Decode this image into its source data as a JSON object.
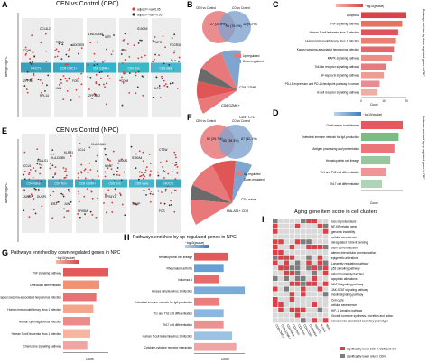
{
  "panels": {
    "A": {
      "label": "A",
      "title": "CEN vs Control (CPC)",
      "ylabel": "average log2FC",
      "legend": [
        "adjust P−val<0.05",
        "adjust P−val>=0.05"
      ],
      "clusters": [
        "NK/CTL",
        "CD8 CMC1+",
        "CD8 GZMB+",
        "CD4 Tem",
        "CD8 naive"
      ],
      "cluster_colors": [
        "#3a9fb8",
        "#36a6c9",
        "#2fb4cf",
        "#3bb8c5",
        "#49b6cf"
      ],
      "genes_up": [
        "CCL5",
        "TRAC",
        "LINC02446",
        "HBB",
        "TMPO",
        "CCL4L2",
        "ADGRE5",
        "IL7R",
        "S100A9",
        "FCGR3A"
      ],
      "genes_down": [
        "ZFP36",
        "JUN",
        "ZFP36L2",
        "CD69",
        "KLF6",
        "RPL14",
        "FOS"
      ]
    },
    "B": {
      "label": "B",
      "venn": {
        "left_title": "CEN vs Control",
        "right_title": "CO vs Control",
        "left": "27\n(20.8%)",
        "center": "91\n(70.0%)",
        "right": "12\n(9.2%)"
      },
      "legend": [
        "Up-regulated",
        "Down-regulated"
      ],
      "annotations": [
        "CD8 GZMB",
        "CD8 GZMK+",
        "CD4+ CTL"
      ]
    },
    "C": {
      "label": "C",
      "scale_label": "−log10(pvalue)",
      "xlabel": "Count",
      "side_label": "Pathways enriched by down-regulated genes in CPC",
      "ticks": [
        "0",
        "10",
        "20"
      ],
      "pathways": [
        "Apoptosis",
        "TNF signaling pathway",
        "Human T-cell leukemia virus 1 infection",
        "Human immunodeficiency virus 1 infection",
        "Kaposi sarcoma-associated herpesvirus infection",
        "MAPK signaling pathway",
        "Toll-like receptor signaling pathway",
        "NF-kappa B signaling pathway",
        "PD-L1 expression and PD-1 checkpoint pathway in cancer",
        "B cell receptor signaling pathway"
      ],
      "values": [
        22,
        20,
        18,
        17,
        16,
        15,
        12,
        11,
        9,
        8
      ]
    },
    "D": {
      "label": "D",
      "scale_label": "−log10(pvalue)",
      "xlabel": "Count",
      "side_label": "Pathways enriched by up-regulated genes in CPC",
      "pathways": [
        "Graft-versus-host disease",
        "Intestinal immune network for IgA production",
        "Antigen processing and presentation",
        "Hematopoietic cell lineage",
        "Th1 and Th2 cell differentiation",
        "Th17 cell differentiation"
      ],
      "values": [
        10,
        9,
        8,
        7,
        6,
        5
      ]
    },
    "E": {
      "label": "E",
      "title": "CEN vs Control (NPC)",
      "ylabel": "average log2FC",
      "clusters": [
        "CD4 Naive",
        "CD4 Tem",
        "CD8 GZMK+",
        "CD8 Tem",
        "CD8 naive",
        "NK/CTL"
      ],
      "cluster_colors": [
        "#3a9fb8",
        "#4aa6c2",
        "#33b0c8",
        "#3bb5c6",
        "#45b3cc",
        "#3aa9c0"
      ],
      "genes_up": [
        "CCL5",
        "HLA-DRB5",
        "CCL4",
        "NKG7",
        "S100A4",
        "CTSW",
        "LGALS1",
        "KLRB1",
        "HLA-DQA1",
        "ANXA1"
      ],
      "genes_down": [
        "JUNB",
        "IER2",
        "NFKBIA",
        "RPS4Y1",
        "TXNIP",
        "FOS",
        "DUSP1",
        "JUN"
      ]
    },
    "F": {
      "label": "F",
      "venn": {
        "left_title": "CEN vs Control",
        "right_title": "CO vs Control",
        "left": "62\n(29.7%)",
        "center": "80\n(38.3%)",
        "right": "67\n(32.1%)"
      },
      "legend": [
        "Up-regulated",
        "Down-regulated"
      ],
      "annotations": [
        "CD4 naive",
        "MALAT1+ CD4"
      ]
    },
    "G": {
      "label": "G",
      "title": "Pathways enriched by down-regulated genes in NPC",
      "scale_label": "−log10(pvalue)",
      "xlabel": "Count",
      "pathways": [
        "TNF signaling pathway",
        "Osteoclast differentiation",
        "Kaposi sarcoma-associated herpesvirus infection",
        "Human immunodeficiency virus 1 infection",
        "Human cytomegalovirus infection",
        "Human T-cell leukemia virus 1 infection",
        "Chemokine signaling pathway"
      ],
      "values": [
        15,
        12,
        11,
        10,
        9,
        9,
        8
      ]
    },
    "H": {
      "label": "H",
      "title": "Pathways enriched by up-regulated genes in NPC",
      "scale_label": "−log10(pvalue)",
      "xlabel": "Count",
      "pathways": [
        "Hematopoietic cell lineage",
        "Rheumatoid arthritis",
        "Influenza A",
        "Herpes simplex virus 1 infection",
        "Intestinal immune network for IgA production",
        "Th1 and Th2 cell differentiation",
        "Th17 cell differentiation",
        "Human T-cell leukemia virus 1 infection",
        "Cytokine-cytokine receptor interaction"
      ],
      "values": [
        8,
        7,
        6,
        12,
        6,
        7,
        7,
        9,
        10
      ]
    },
    "I": {
      "label": "I",
      "title": "Aging gene item score in cell clusters",
      "rows": [
        "loss of proteostasis",
        "NF-KB related gene",
        "genomic instability",
        "cellular senescence",
        "deregulated nutrient sensing",
        "stem cell exhaustion",
        "altered intercellular communication",
        "epigenetic alterations",
        "Longevity regulating pathway",
        "p53 signaling pathway",
        "mitochondrial dysfunction",
        "apoptotic alterations",
        "MAPK signaling pathway",
        "JAK-STAT signaling pathway",
        "insulin signaling pathway",
        "Cell cycle",
        "cellular senescence",
        "HIF-1 signaling pathway",
        "Growth hormone synthesis, secretion and action",
        "senescence associated secretory phenotype"
      ],
      "cols": [
        "CD8 CMC1+",
        "CD8 GZMK+",
        "CD4 naive",
        "CD4 Tem",
        "CD8 Tem",
        "CD4 CD8+",
        "CD8 naive",
        "NK/CTL",
        "B cells",
        "Mono"
      ],
      "legend": [
        "significantly lower both in CEN and CO",
        "significantly lower only in CEN"
      ],
      "colors": {
        "both": "#d8434a",
        "only": "#7d7d7d",
        "none": "#d9d9d9"
      }
    }
  }
}
